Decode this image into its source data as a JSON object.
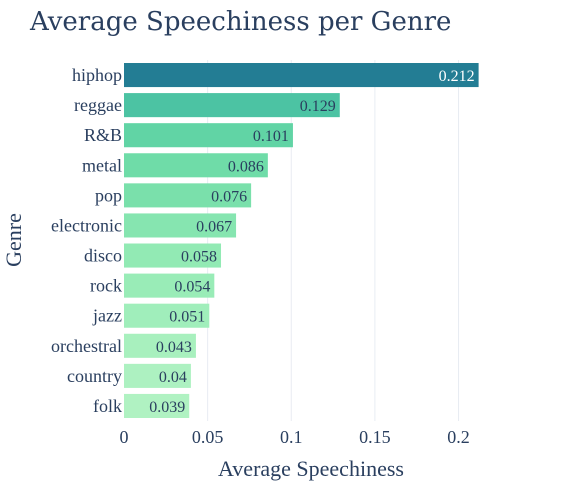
{
  "chart_data": {
    "type": "bar",
    "orientation": "horizontal",
    "title": "Average Speechiness per Genre",
    "xlabel": "Average Speechiness",
    "ylabel": "Genre",
    "xlim": [
      0,
      0.223
    ],
    "xticks": [
      0,
      0.05,
      0.1,
      0.15,
      0.2
    ],
    "xtick_labels": [
      "0",
      "0.05",
      "0.1",
      "0.15",
      "0.2"
    ],
    "grid": true,
    "categories": [
      "hiphop",
      "reggae",
      "R&B",
      "metal",
      "pop",
      "electronic",
      "disco",
      "rock",
      "jazz",
      "orchestral",
      "country",
      "folk"
    ],
    "values": [
      0.212,
      0.129,
      0.101,
      0.086,
      0.076,
      0.067,
      0.058,
      0.054,
      0.051,
      0.043,
      0.04,
      0.039
    ],
    "value_labels": [
      "0.212",
      "0.129",
      "0.101",
      "0.086",
      "0.076",
      "0.067",
      "0.058",
      "0.054",
      "0.051",
      "0.043",
      "0.04",
      "0.039"
    ],
    "bar_colors": [
      "#237d94",
      "#4cc3a3",
      "#61d4a5",
      "#6fdca8",
      "#7ae0ab",
      "#86e5b0",
      "#92eab4",
      "#99ecb7",
      "#a0eebb",
      "#a8f0be",
      "#adf1c1",
      "#b0f2c2"
    ],
    "label_colors": [
      "#ffffff",
      "#2a3f5f",
      "#2a3f5f",
      "#2a3f5f",
      "#2a3f5f",
      "#2a3f5f",
      "#2a3f5f",
      "#2a3f5f",
      "#2a3f5f",
      "#2a3f5f",
      "#2a3f5f",
      "#2a3f5f"
    ]
  }
}
